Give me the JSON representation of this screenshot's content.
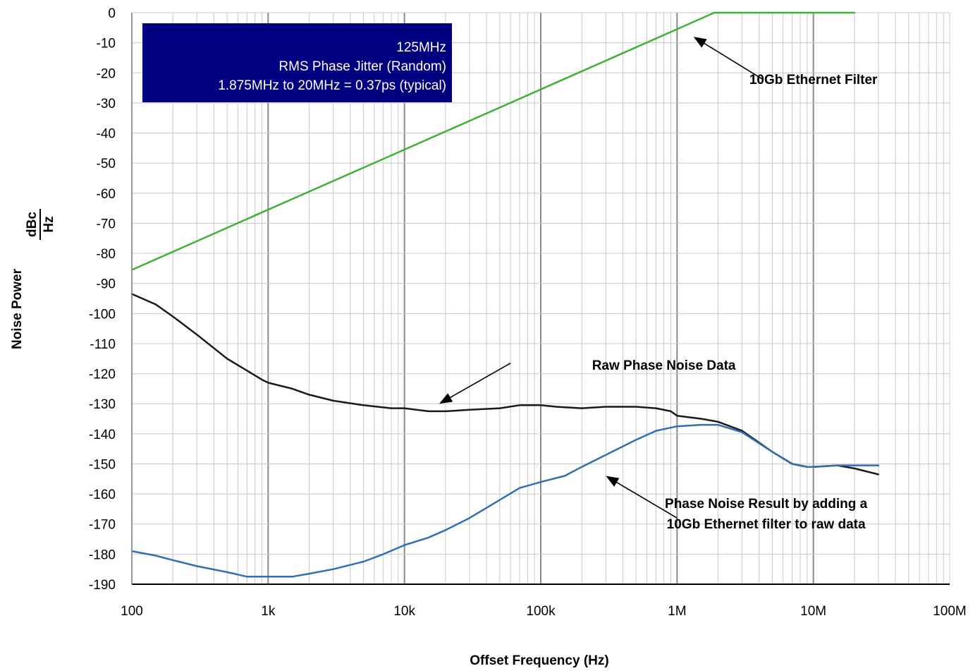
{
  "chart_data": {
    "type": "line",
    "title": "",
    "xlabel": "Offset Frequency (Hz)",
    "ylabel": "Noise Power",
    "ylabel_unit": {
      "num": "dBc",
      "den": "Hz"
    },
    "x_scale": "log",
    "xlim": [
      100,
      100000000
    ],
    "ylim": [
      -190,
      0
    ],
    "grid": true,
    "x_ticks": [
      {
        "value": 100,
        "label": "100"
      },
      {
        "value": 1000,
        "label": "1k"
      },
      {
        "value": 10000,
        "label": "10k"
      },
      {
        "value": 100000,
        "label": "100k"
      },
      {
        "value": 1000000,
        "label": "1M"
      },
      {
        "value": 10000000,
        "label": "10M"
      },
      {
        "value": 100000000,
        "label": "100M"
      }
    ],
    "y_ticks": [
      "0",
      "-10",
      "-20",
      "-30",
      "-40",
      "-50",
      "-60",
      "-70",
      "-80",
      "-90",
      "-100",
      "-110",
      "-120",
      "-130",
      "-140",
      "-150",
      "-160",
      "-170",
      "-180",
      "-190"
    ],
    "info_box": {
      "lines": [
        "125MHz",
        "RMS Phase Jitter (Random)",
        "1.875MHz to 20MHz = 0.37ps (typical)"
      ],
      "bg_color": "#000080"
    },
    "series": [
      {
        "color": "#3cb334",
        "points": [
          [
            100,
            -85.5
          ],
          [
            1000,
            -65.5
          ],
          [
            10000,
            -45.5
          ],
          [
            100000,
            -25.5
          ],
          [
            1000000,
            -5.5
          ],
          [
            1875000,
            0
          ],
          [
            20000000,
            0
          ]
        ]
      },
      {
        "color": "#1a1a1a",
        "points": [
          [
            100,
            -93.5
          ],
          [
            150,
            -97
          ],
          [
            200,
            -101
          ],
          [
            300,
            -107
          ],
          [
            500,
            -115
          ],
          [
            700,
            -119
          ],
          [
            900,
            -122
          ],
          [
            1000,
            -123
          ],
          [
            1500,
            -125
          ],
          [
            2000,
            -127
          ],
          [
            3000,
            -129
          ],
          [
            5000,
            -130.5
          ],
          [
            8000,
            -131.5
          ],
          [
            10000,
            -131.5
          ],
          [
            15000,
            -132.5
          ],
          [
            20000,
            -132.5
          ],
          [
            30000,
            -132
          ],
          [
            50000,
            -131.5
          ],
          [
            70000,
            -130.5
          ],
          [
            100000,
            -130.5
          ],
          [
            130000,
            -131
          ],
          [
            200000,
            -131.5
          ],
          [
            300000,
            -131
          ],
          [
            500000,
            -131
          ],
          [
            700000,
            -131.5
          ],
          [
            900000,
            -132.5
          ],
          [
            1000000,
            -134
          ],
          [
            1500000,
            -135
          ],
          [
            2000000,
            -136
          ],
          [
            3000000,
            -139
          ],
          [
            5000000,
            -146
          ],
          [
            7000000,
            -150
          ],
          [
            9000000,
            -151
          ],
          [
            10000000,
            -151
          ],
          [
            15000000,
            -150.5
          ],
          [
            20000000,
            -151.5
          ],
          [
            30000000,
            -153.5
          ]
        ]
      },
      {
        "color": "#2f6fb4",
        "points": [
          [
            100,
            -179
          ],
          [
            150,
            -180.5
          ],
          [
            200,
            -182
          ],
          [
            300,
            -184
          ],
          [
            500,
            -186
          ],
          [
            700,
            -187.5
          ],
          [
            1000,
            -187.5
          ],
          [
            1500,
            -187.5
          ],
          [
            2000,
            -186.5
          ],
          [
            3000,
            -185
          ],
          [
            5000,
            -182.5
          ],
          [
            7000,
            -180
          ],
          [
            10000,
            -177
          ],
          [
            15000,
            -174.5
          ],
          [
            20000,
            -172
          ],
          [
            30000,
            -168
          ],
          [
            50000,
            -162
          ],
          [
            70000,
            -158
          ],
          [
            100000,
            -156
          ],
          [
            150000,
            -154
          ],
          [
            200000,
            -151
          ],
          [
            300000,
            -147
          ],
          [
            500000,
            -142
          ],
          [
            700000,
            -139
          ],
          [
            1000000,
            -137.5
          ],
          [
            1500000,
            -137
          ],
          [
            2000000,
            -137
          ],
          [
            3000000,
            -139.5
          ],
          [
            5000000,
            -146
          ],
          [
            7000000,
            -150
          ],
          [
            9000000,
            -151
          ],
          [
            10000000,
            -151
          ],
          [
            15000000,
            -150.5
          ],
          [
            20000000,
            -150.5
          ],
          [
            30000000,
            -150.5
          ]
        ]
      }
    ],
    "annotations": [
      {
        "lines": [
          "10Gb Ethernet Filter"
        ],
        "text_x": 10000000,
        "text_y": -22,
        "arrow_from": [
          4200000,
          -22
        ],
        "arrow_to": [
          1320000,
          -8
        ]
      },
      {
        "lines": [
          "Raw Phase Noise Data"
        ],
        "text_x": 800000,
        "text_y": -117,
        "arrow_from": [
          60000,
          -116.5
        ],
        "arrow_to": [
          18000,
          -130
        ]
      },
      {
        "lines": [
          "Phase Noise Result by adding a",
          "10Gb Ethernet filter to raw data"
        ],
        "text_x": 4500000,
        "text_y": -163,
        "arrow_from": [
          1000000,
          -168
        ],
        "arrow_to": [
          300000,
          -154
        ]
      }
    ]
  }
}
